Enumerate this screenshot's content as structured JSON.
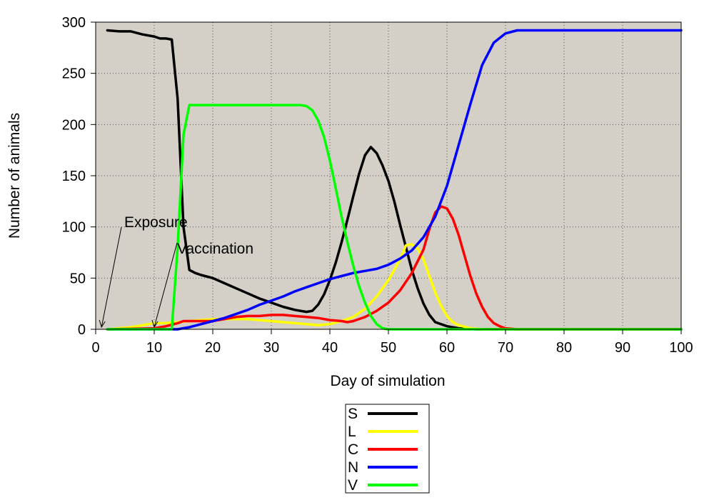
{
  "chart_data": {
    "type": "line",
    "title": "",
    "xlabel": "Day of simulation",
    "ylabel": "Number of animals",
    "xlim": [
      0,
      100
    ],
    "ylim": [
      0,
      300
    ],
    "x_ticks": [
      0,
      10,
      20,
      30,
      40,
      50,
      60,
      70,
      80,
      90,
      100
    ],
    "y_ticks": [
      0,
      50,
      100,
      150,
      200,
      250,
      300
    ],
    "grid": true,
    "plot_background": "#d4d0c8",
    "legend_position": "bottom-center",
    "series": [
      {
        "name": "S",
        "color": "#000000",
        "points": [
          [
            2,
            292
          ],
          [
            4,
            291
          ],
          [
            6,
            291
          ],
          [
            8,
            288
          ],
          [
            10,
            286
          ],
          [
            11,
            284
          ],
          [
            12,
            284
          ],
          [
            13,
            283
          ],
          [
            14,
            225
          ],
          [
            15,
            100
          ],
          [
            16,
            58
          ],
          [
            17,
            55
          ],
          [
            18,
            53
          ],
          [
            20,
            50
          ],
          [
            22,
            45
          ],
          [
            24,
            40
          ],
          [
            26,
            35
          ],
          [
            28,
            30
          ],
          [
            30,
            26
          ],
          [
            32,
            22
          ],
          [
            34,
            19
          ],
          [
            36,
            17
          ],
          [
            37,
            18
          ],
          [
            38,
            24
          ],
          [
            39,
            34
          ],
          [
            40,
            48
          ],
          [
            41,
            65
          ],
          [
            42,
            85
          ],
          [
            43,
            107
          ],
          [
            44,
            130
          ],
          [
            45,
            152
          ],
          [
            46,
            170
          ],
          [
            47,
            178
          ],
          [
            48,
            172
          ],
          [
            49,
            160
          ],
          [
            50,
            145
          ],
          [
            51,
            125
          ],
          [
            52,
            102
          ],
          [
            53,
            80
          ],
          [
            54,
            58
          ],
          [
            55,
            40
          ],
          [
            56,
            25
          ],
          [
            57,
            14
          ],
          [
            58,
            7
          ],
          [
            60,
            3
          ],
          [
            62,
            1
          ],
          [
            65,
            0
          ],
          [
            100,
            0
          ]
        ]
      },
      {
        "name": "L",
        "color": "#ffff00",
        "points": [
          [
            2,
            0
          ],
          [
            6,
            2
          ],
          [
            8,
            4
          ],
          [
            10,
            6
          ],
          [
            12,
            6
          ],
          [
            14,
            7
          ],
          [
            16,
            8
          ],
          [
            18,
            9
          ],
          [
            20,
            10
          ],
          [
            22,
            10
          ],
          [
            24,
            10
          ],
          [
            26,
            10
          ],
          [
            28,
            9
          ],
          [
            30,
            8
          ],
          [
            32,
            7
          ],
          [
            34,
            6
          ],
          [
            36,
            5
          ],
          [
            38,
            4
          ],
          [
            40,
            5
          ],
          [
            42,
            8
          ],
          [
            44,
            12
          ],
          [
            46,
            20
          ],
          [
            48,
            32
          ],
          [
            50,
            48
          ],
          [
            52,
            68
          ],
          [
            53,
            82
          ],
          [
            54,
            83
          ],
          [
            55,
            79
          ],
          [
            56,
            68
          ],
          [
            57,
            52
          ],
          [
            58,
            36
          ],
          [
            59,
            23
          ],
          [
            60,
            13
          ],
          [
            61,
            7
          ],
          [
            62,
            4
          ],
          [
            64,
            1
          ],
          [
            66,
            0
          ],
          [
            100,
            0
          ]
        ]
      },
      {
        "name": "C",
        "color": "#ff0000",
        "points": [
          [
            2,
            0
          ],
          [
            10,
            1
          ],
          [
            12,
            3
          ],
          [
            14,
            6
          ],
          [
            15,
            8
          ],
          [
            20,
            8
          ],
          [
            22,
            10
          ],
          [
            24,
            12
          ],
          [
            26,
            13
          ],
          [
            28,
            13
          ],
          [
            30,
            14
          ],
          [
            32,
            14
          ],
          [
            34,
            13
          ],
          [
            36,
            12
          ],
          [
            38,
            11
          ],
          [
            40,
            9
          ],
          [
            42,
            8
          ],
          [
            43,
            7
          ],
          [
            44,
            8
          ],
          [
            46,
            12
          ],
          [
            48,
            18
          ],
          [
            50,
            26
          ],
          [
            52,
            38
          ],
          [
            54,
            55
          ],
          [
            56,
            78
          ],
          [
            57,
            98
          ],
          [
            58,
            114
          ],
          [
            59,
            120
          ],
          [
            60,
            118
          ],
          [
            61,
            108
          ],
          [
            62,
            92
          ],
          [
            63,
            72
          ],
          [
            64,
            52
          ],
          [
            65,
            35
          ],
          [
            66,
            22
          ],
          [
            67,
            12
          ],
          [
            68,
            6
          ],
          [
            69,
            3
          ],
          [
            70,
            1
          ],
          [
            72,
            0
          ],
          [
            100,
            0
          ]
        ]
      },
      {
        "name": "N",
        "color": "#0000ff",
        "points": [
          [
            2,
            0
          ],
          [
            14,
            0
          ],
          [
            16,
            2
          ],
          [
            18,
            5
          ],
          [
            20,
            8
          ],
          [
            22,
            11
          ],
          [
            24,
            15
          ],
          [
            26,
            19
          ],
          [
            28,
            24
          ],
          [
            30,
            28
          ],
          [
            32,
            32
          ],
          [
            34,
            37
          ],
          [
            36,
            41
          ],
          [
            38,
            45
          ],
          [
            40,
            49
          ],
          [
            42,
            52
          ],
          [
            44,
            55
          ],
          [
            46,
            57
          ],
          [
            48,
            59
          ],
          [
            50,
            63
          ],
          [
            52,
            69
          ],
          [
            54,
            77
          ],
          [
            56,
            90
          ],
          [
            58,
            110
          ],
          [
            60,
            140
          ],
          [
            62,
            180
          ],
          [
            64,
            220
          ],
          [
            66,
            258
          ],
          [
            68,
            280
          ],
          [
            70,
            289
          ],
          [
            72,
            292
          ],
          [
            80,
            292
          ],
          [
            90,
            292
          ],
          [
            100,
            292
          ]
        ]
      },
      {
        "name": "V",
        "color": "#00ff00",
        "points": [
          [
            2,
            0
          ],
          [
            13,
            0
          ],
          [
            14,
            80
          ],
          [
            15,
            190
          ],
          [
            16,
            219
          ],
          [
            20,
            219
          ],
          [
            25,
            219
          ],
          [
            30,
            219
          ],
          [
            35,
            219
          ],
          [
            36,
            218
          ],
          [
            37,
            214
          ],
          [
            38,
            204
          ],
          [
            39,
            188
          ],
          [
            40,
            165
          ],
          [
            41,
            138
          ],
          [
            42,
            110
          ],
          [
            43,
            85
          ],
          [
            44,
            62
          ],
          [
            45,
            42
          ],
          [
            46,
            26
          ],
          [
            47,
            13
          ],
          [
            48,
            5
          ],
          [
            49,
            1
          ],
          [
            50,
            0
          ],
          [
            100,
            0
          ]
        ]
      }
    ],
    "annotations": [
      {
        "text": "Exposure",
        "day": 1
      },
      {
        "text": "Vaccination",
        "day": 10
      }
    ]
  }
}
